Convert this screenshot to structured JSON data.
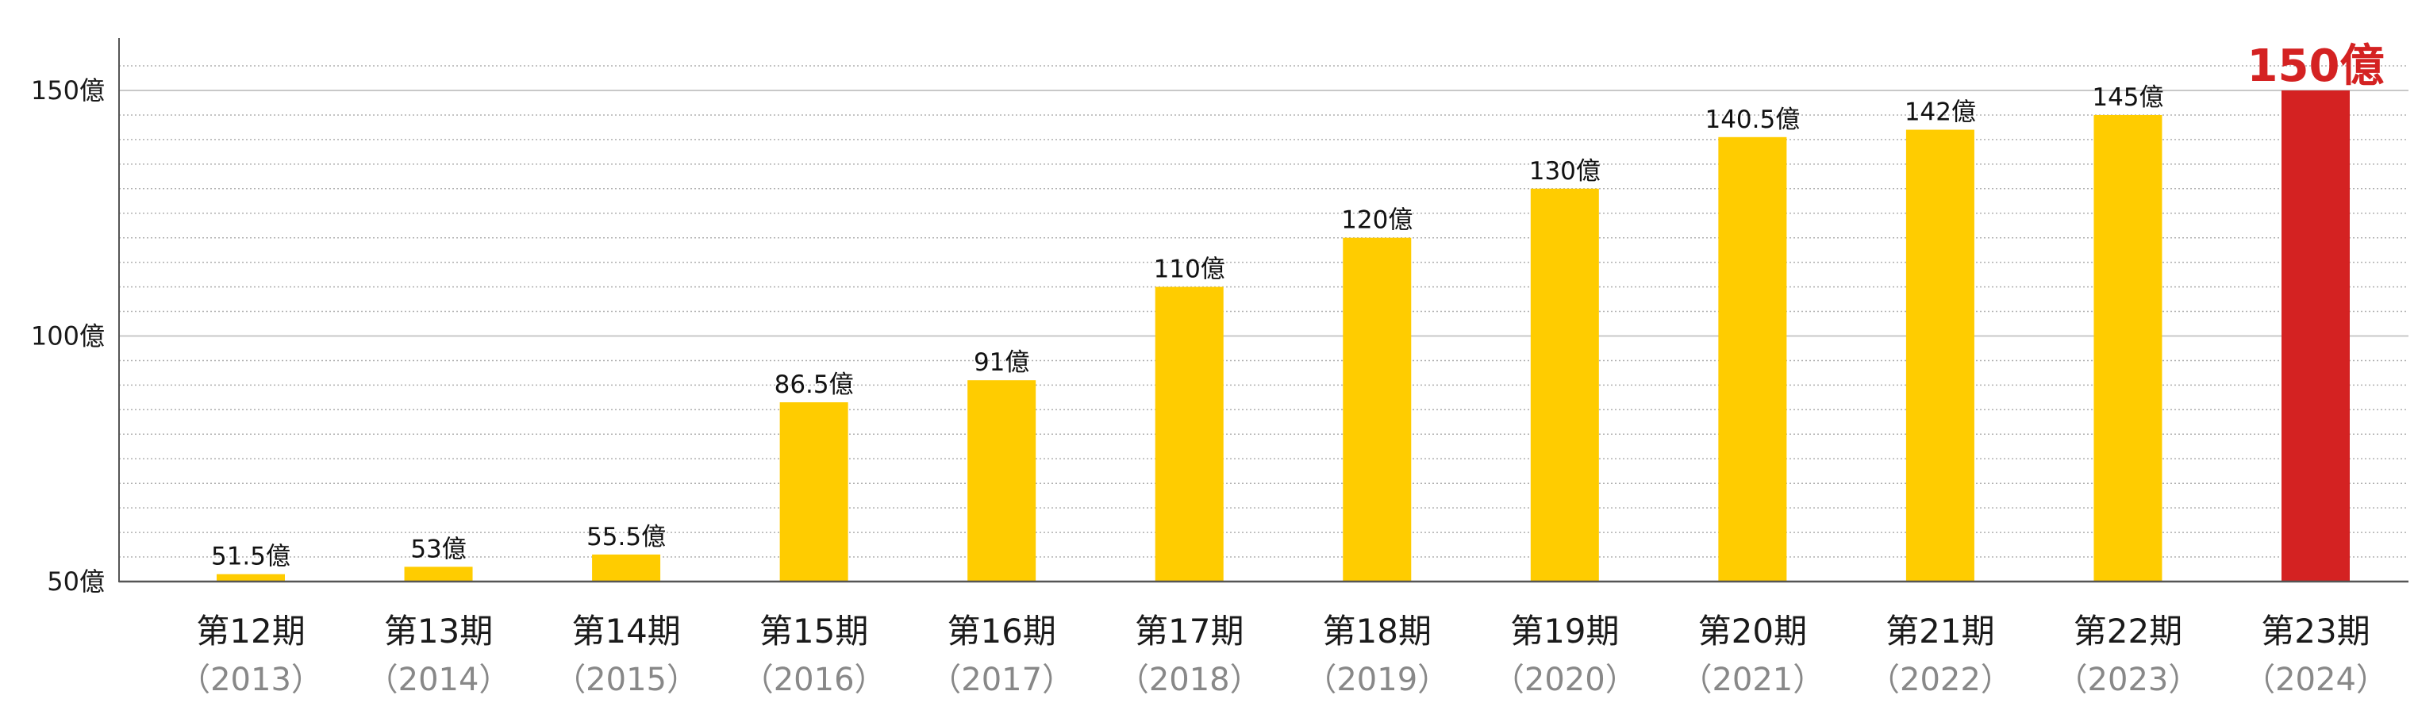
{
  "chart_data": {
    "type": "bar",
    "categories": [
      "第12期",
      "第13期",
      "第14期",
      "第15期",
      "第16期",
      "第17期",
      "第18期",
      "第19期",
      "第20期",
      "第21期",
      "第22期",
      "第23期"
    ],
    "years": [
      "（2013）",
      "（2014）",
      "（2015）",
      "（2016）",
      "（2017）",
      "（2018）",
      "（2019）",
      "（2020）",
      "（2021）",
      "（2022）",
      "（2023）",
      "（2024）"
    ],
    "values": [
      51.5,
      53,
      55.5,
      86.5,
      91,
      110,
      120,
      130,
      140.5,
      142,
      145,
      150
    ],
    "data_labels": [
      "51.5億",
      "53億",
      "55.5億",
      "86.5億",
      "91億",
      "110億",
      "120億",
      "130億",
      "140.5億",
      "142億",
      "145億",
      "150億"
    ],
    "highlight_index": 11,
    "ylim": [
      50,
      155
    ],
    "yticks": [
      {
        "value": 50,
        "label": "50億"
      },
      {
        "value": 100,
        "label": "100億"
      },
      {
        "value": 150,
        "label": "150億"
      }
    ],
    "minor_grid_step": 10,
    "grid": true,
    "title": "",
    "xlabel": "",
    "ylabel": "",
    "colors": {
      "bar": "#FFCC00",
      "highlight_bar": "#D42222",
      "highlight_label": "#D42222",
      "axis": "#555555",
      "major_grid": "#c8c8c8",
      "minor_grid": "#b0b0b0"
    }
  }
}
